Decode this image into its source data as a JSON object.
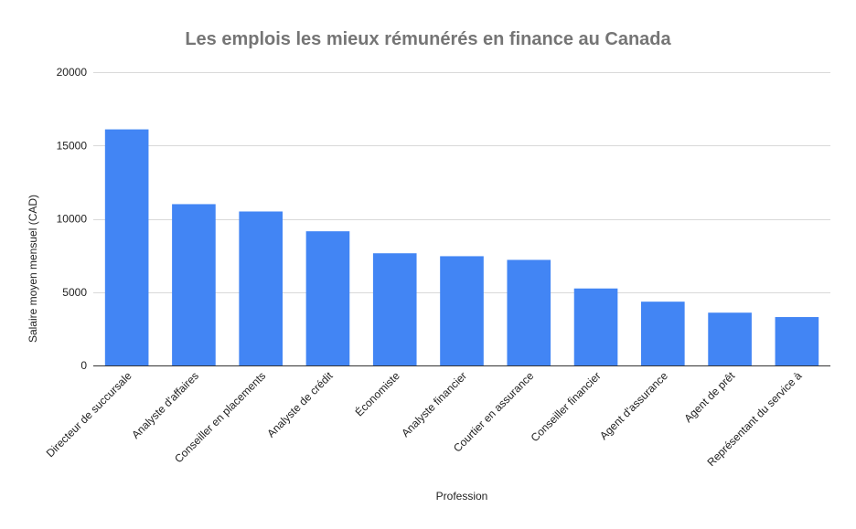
{
  "chart_data": {
    "type": "bar",
    "title": "Les emplois les mieux rémunérés en finance au Canada",
    "xlabel": "Profession",
    "ylabel": "Salaire moyen mensuel (CAD)",
    "ylim": [
      0,
      20000
    ],
    "yticks": [
      0,
      5000,
      10000,
      15000,
      20000
    ],
    "grid": true,
    "categories": [
      "Directeur de succursale",
      "Analyste d'affaires",
      "Conseiller en placements",
      "Analyste de crédit",
      "Économiste",
      "Analyste financier",
      "Courtier en assurance",
      "Conseiller financier",
      "Agent d'assurance",
      "Agent de prêt",
      "Représentant du service à"
    ],
    "values": [
      16100,
      11000,
      10500,
      9150,
      7650,
      7450,
      7200,
      5250,
      4350,
      3600,
      3300
    ],
    "bar_color": "#4285f4"
  }
}
